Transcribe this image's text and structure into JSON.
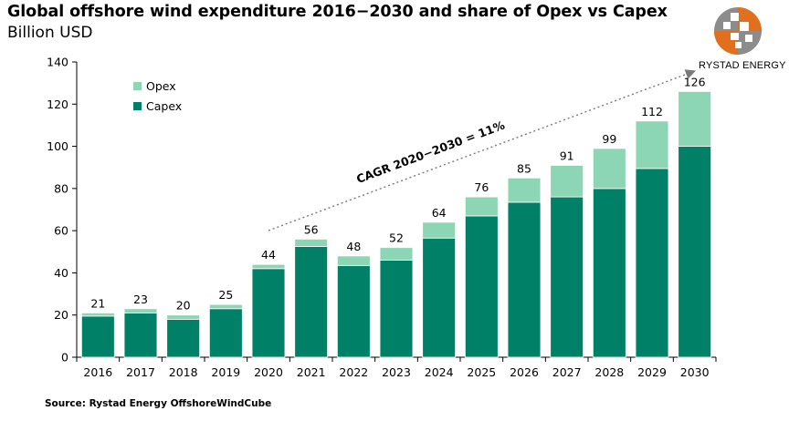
{
  "header": {
    "title": "Global offshore wind expenditure 2016−2030 and share of Opex vs Capex",
    "subtitle": "Billion USD"
  },
  "footer": {
    "source": "Source: Rystad Energy OffshoreWindCube"
  },
  "brand": {
    "logo_text": "RYSTAD ENERGY",
    "accent": "#e0701e",
    "gray": "#8c8c8c"
  },
  "chart_data": {
    "type": "bar",
    "stacked": true,
    "title": "Global offshore wind expenditure 2016−2030 and share of Opex vs Capex",
    "ylabel": "Billion USD",
    "xlabel": "",
    "ylim": [
      0,
      140
    ],
    "yticks": [
      0,
      20,
      40,
      60,
      80,
      100,
      120,
      140
    ],
    "grid": false,
    "legend_position": "top-left",
    "categories": [
      "2016",
      "2017",
      "2018",
      "2019",
      "2020",
      "2021",
      "2022",
      "2023",
      "2024",
      "2025",
      "2026",
      "2027",
      "2028",
      "2029",
      "2030"
    ],
    "series": [
      {
        "name": "Capex",
        "color": "#008066",
        "values": [
          19.5,
          21,
          18,
          23,
          42,
          52.5,
          43.5,
          46,
          56.5,
          67,
          73.5,
          76,
          80,
          89.5,
          100
        ]
      },
      {
        "name": "Opex",
        "color": "#8dd6b5",
        "values": [
          1.5,
          2,
          2,
          2,
          2,
          3.5,
          4.5,
          6,
          7.5,
          9,
          11.5,
          15,
          19,
          22.5,
          26
        ]
      }
    ],
    "totals": [
      21,
      23,
      20,
      25,
      44,
      56,
      48,
      52,
      64,
      76,
      85,
      91,
      99,
      112,
      126
    ],
    "legend_order": [
      "Opex",
      "Capex"
    ],
    "annotation": {
      "text": "CAGR 2020−2030 = 11%",
      "from_category": "2020",
      "to_category": "2030"
    }
  }
}
